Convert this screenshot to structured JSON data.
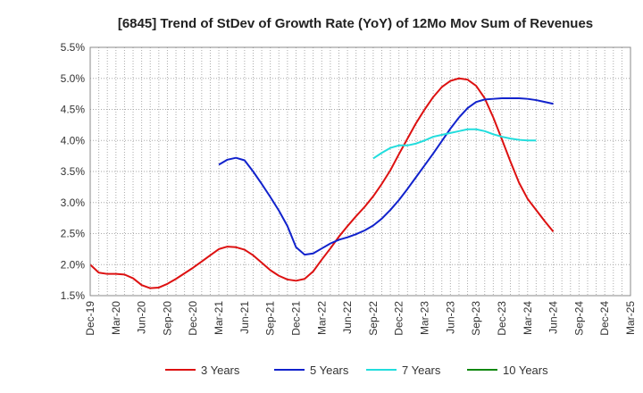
{
  "chart_data": {
    "type": "line",
    "title": "[6845]  Trend of StDev of Growth Rate (YoY) of 12Mo Mov Sum of Revenues",
    "xlabel": "",
    "ylabel": "",
    "ylim": [
      1.5,
      5.5
    ],
    "y_ticks": [
      "1.5%",
      "2.0%",
      "2.5%",
      "3.0%",
      "3.5%",
      "4.0%",
      "4.5%",
      "5.0%",
      "5.5%"
    ],
    "x_ticks": [
      "Dec-19",
      "Mar-20",
      "Jun-20",
      "Sep-20",
      "Dec-20",
      "Mar-21",
      "Jun-21",
      "Sep-21",
      "Dec-21",
      "Mar-22",
      "Jun-22",
      "Sep-22",
      "Dec-22",
      "Mar-23",
      "Jun-23",
      "Sep-23",
      "Dec-23",
      "Mar-24",
      "Jun-24",
      "Sep-24",
      "Dec-24",
      "Mar-25"
    ],
    "grid": true,
    "legend_position": "bottom",
    "series": [
      {
        "name": "3 Years",
        "color": "#dd1111",
        "start_index": 0,
        "values": [
          2.0,
          1.87,
          1.85,
          1.85,
          1.84,
          1.78,
          1.67,
          1.62,
          1.63,
          1.69,
          1.77,
          1.86,
          1.95,
          2.05,
          2.15,
          2.25,
          2.29,
          2.28,
          2.24,
          2.15,
          2.03,
          1.91,
          1.82,
          1.76,
          1.74,
          1.77,
          1.89,
          2.08,
          2.26,
          2.45,
          2.62,
          2.78,
          2.93,
          3.1,
          3.3,
          3.52,
          3.78,
          4.03,
          4.28,
          4.5,
          4.7,
          4.86,
          4.96,
          5.0,
          4.98,
          4.88,
          4.68,
          4.37,
          4.02,
          3.66,
          3.32,
          3.06,
          2.88,
          2.7,
          2.53
        ]
      },
      {
        "name": "5 Years",
        "color": "#1122cc",
        "start_index": 15,
        "values": [
          3.61,
          3.69,
          3.72,
          3.68,
          3.5,
          3.3,
          3.09,
          2.87,
          2.62,
          2.28,
          2.16,
          2.18,
          2.26,
          2.34,
          2.4,
          2.44,
          2.49,
          2.55,
          2.63,
          2.74,
          2.88,
          3.04,
          3.22,
          3.41,
          3.6,
          3.79,
          3.99,
          4.19,
          4.37,
          4.52,
          4.62,
          4.66,
          4.67,
          4.68,
          4.68,
          4.68,
          4.67,
          4.65,
          4.62,
          4.59
        ]
      },
      {
        "name": "7 Years",
        "color": "#22dddd",
        "start_index": 33,
        "values": [
          3.71,
          3.8,
          3.88,
          3.92,
          3.92,
          3.95,
          4.0,
          4.06,
          4.09,
          4.12,
          4.15,
          4.18,
          4.18,
          4.15,
          4.1,
          4.06,
          4.03,
          4.01,
          4.0,
          4.0
        ]
      },
      {
        "name": "10 Years",
        "color": "#118811",
        "start_index": 0,
        "values": []
      }
    ]
  }
}
